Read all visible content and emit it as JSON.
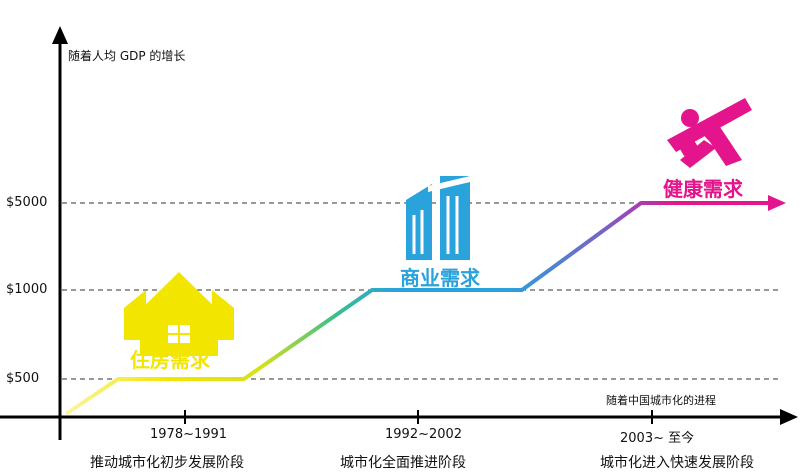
{
  "axes": {
    "y_title": "随着人均 GDP 的增长",
    "x_title": "随着中国城市化的进程",
    "y_ticks": [
      "$500",
      "$1000",
      "$5000"
    ]
  },
  "periods": [
    {
      "years": "1978~1991",
      "stage": "推动城市化初步发展阶段",
      "demand": "住房需求",
      "icon": "house-icon"
    },
    {
      "years": "1992~2002",
      "stage": "城市化全面推进阶段",
      "demand": "商业需求",
      "icon": "office-building-icon"
    },
    {
      "years": "2003~ 至今",
      "stage": "城市化进入快速发展阶段",
      "demand": "健康需求",
      "icon": "runner-icon"
    }
  ],
  "colors": {
    "housing": "#f2e600",
    "commercial": "#2aa2dc",
    "health": "#e4148c",
    "axis": "#000000"
  }
}
